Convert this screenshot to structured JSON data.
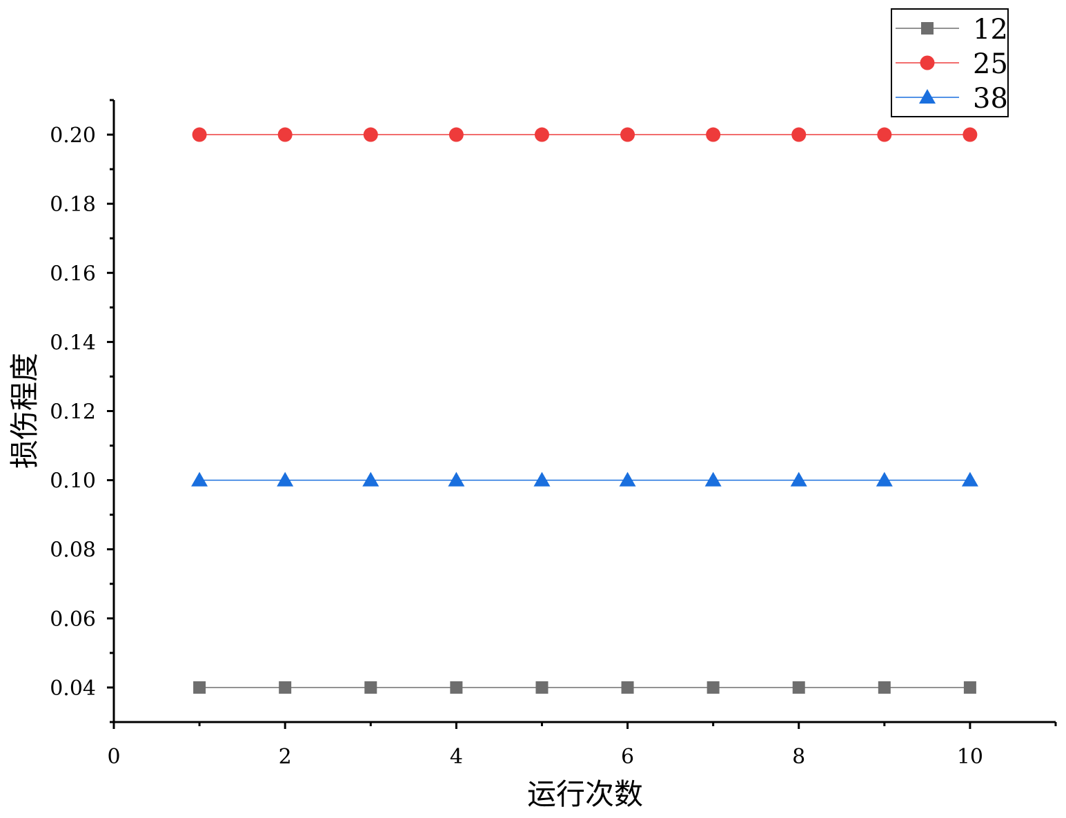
{
  "chart_data": {
    "type": "line",
    "xlabel": "运行次数",
    "ylabel": "损伤程度",
    "xlim": [
      0,
      11
    ],
    "ylim": [
      0.03,
      0.21
    ],
    "x_ticks": [
      0,
      2,
      4,
      6,
      8,
      10
    ],
    "x_tick_labels": [
      "0",
      "2",
      "4",
      "6",
      "8",
      "10"
    ],
    "y_ticks": [
      0.04,
      0.06,
      0.08,
      0.1,
      0.12,
      0.14,
      0.16,
      0.18,
      0.2
    ],
    "y_tick_labels": [
      "0.04",
      "0.06",
      "0.08",
      "0.10",
      "0.12",
      "0.14",
      "0.16",
      "0.18",
      "0.20"
    ],
    "grid": false,
    "legend_position": "top-right",
    "x": [
      1,
      2,
      3,
      4,
      5,
      6,
      7,
      8,
      9,
      10
    ],
    "series": [
      {
        "name": "12",
        "marker": "square",
        "color": "#6e6e6e",
        "values": [
          0.04,
          0.04,
          0.04,
          0.04,
          0.04,
          0.04,
          0.04,
          0.04,
          0.04,
          0.04
        ]
      },
      {
        "name": "25",
        "marker": "circle",
        "color": "#ee3b3b",
        "values": [
          0.2,
          0.2,
          0.2,
          0.2,
          0.2,
          0.2,
          0.2,
          0.2,
          0.2,
          0.2
        ]
      },
      {
        "name": "38",
        "marker": "triangle",
        "color": "#1a6fde",
        "values": [
          0.1,
          0.1,
          0.1,
          0.1,
          0.1,
          0.1,
          0.1,
          0.1,
          0.1,
          0.1
        ]
      }
    ]
  }
}
